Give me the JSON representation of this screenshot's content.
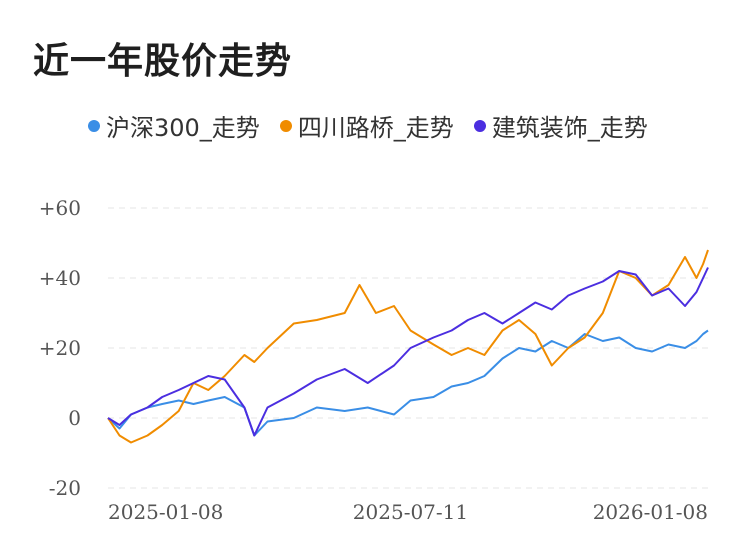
{
  "title": "近一年股价走势",
  "legend": [
    {
      "label": "沪深300_走势",
      "color": "#3a8ee6"
    },
    {
      "label": "四川路桥_走势",
      "color": "#f08c00"
    },
    {
      "label": "建筑装饰_走势",
      "color": "#4b2ee0"
    }
  ],
  "chart_data": {
    "type": "line",
    "ylim": [
      -20,
      60
    ],
    "yticks": [
      "+60",
      "+40",
      "+20",
      "0",
      "-20"
    ],
    "ytick_values": [
      60,
      40,
      20,
      0,
      -20
    ],
    "xticks": [
      "2025-01-08",
      "2025-07-11",
      "2026-01-08"
    ],
    "grid": true,
    "legend_placement": "top",
    "series": [
      {
        "name": "沪深300_走势",
        "color": "#3a8ee6",
        "x": [
          "2025-01-08",
          "2025-01-15",
          "2025-01-22",
          "2025-02-01",
          "2025-02-10",
          "2025-02-20",
          "2025-03-01",
          "2025-03-10",
          "2025-03-20",
          "2025-04-01",
          "2025-04-07",
          "2025-04-15",
          "2025-05-01",
          "2025-05-15",
          "2025-06-01",
          "2025-06-15",
          "2025-07-01",
          "2025-07-11",
          "2025-07-25",
          "2025-08-05",
          "2025-08-15",
          "2025-08-25",
          "2025-09-05",
          "2025-09-15",
          "2025-09-25",
          "2025-10-05",
          "2025-10-15",
          "2025-10-25",
          "2025-11-05",
          "2025-11-15",
          "2025-11-25",
          "2025-12-05",
          "2025-12-15",
          "2025-12-25",
          "2026-01-01",
          "2026-01-05",
          "2026-01-08"
        ],
        "values": [
          0,
          -3,
          1,
          3,
          4,
          5,
          4,
          5,
          6,
          3,
          -5,
          -1,
          0,
          3,
          2,
          3,
          1,
          5,
          6,
          9,
          10,
          12,
          17,
          20,
          19,
          22,
          20,
          24,
          22,
          23,
          20,
          19,
          21,
          20,
          22,
          24,
          25
        ]
      },
      {
        "name": "四川路桥_走势",
        "color": "#f08c00",
        "x": [
          "2025-01-08",
          "2025-01-15",
          "2025-01-22",
          "2025-02-01",
          "2025-02-10",
          "2025-02-20",
          "2025-03-01",
          "2025-03-10",
          "2025-03-20",
          "2025-04-01",
          "2025-04-07",
          "2025-04-15",
          "2025-05-01",
          "2025-05-15",
          "2025-06-01",
          "2025-06-10",
          "2025-06-20",
          "2025-07-01",
          "2025-07-11",
          "2025-07-25",
          "2025-08-05",
          "2025-08-15",
          "2025-08-25",
          "2025-09-05",
          "2025-09-15",
          "2025-09-25",
          "2025-10-05",
          "2025-10-15",
          "2025-10-25",
          "2025-11-05",
          "2025-11-15",
          "2025-11-25",
          "2025-12-05",
          "2025-12-15",
          "2025-12-25",
          "2026-01-01",
          "2026-01-05",
          "2026-01-08"
        ],
        "values": [
          0,
          -5,
          -7,
          -5,
          -2,
          2,
          10,
          8,
          12,
          18,
          16,
          20,
          27,
          28,
          30,
          38,
          30,
          32,
          25,
          21,
          18,
          20,
          18,
          25,
          28,
          24,
          15,
          20,
          23,
          30,
          42,
          40,
          35,
          38,
          46,
          40,
          44,
          48
        ]
      },
      {
        "name": "建筑装饰_走势",
        "color": "#4b2ee0",
        "x": [
          "2025-01-08",
          "2025-01-15",
          "2025-01-22",
          "2025-02-01",
          "2025-02-10",
          "2025-02-20",
          "2025-03-01",
          "2025-03-10",
          "2025-03-20",
          "2025-04-01",
          "2025-04-07",
          "2025-04-15",
          "2025-05-01",
          "2025-05-15",
          "2025-06-01",
          "2025-06-15",
          "2025-07-01",
          "2025-07-11",
          "2025-07-25",
          "2025-08-05",
          "2025-08-15",
          "2025-08-25",
          "2025-09-05",
          "2025-09-15",
          "2025-09-25",
          "2025-10-05",
          "2025-10-15",
          "2025-10-25",
          "2025-11-05",
          "2025-11-15",
          "2025-11-25",
          "2025-12-05",
          "2025-12-15",
          "2025-12-25",
          "2026-01-01",
          "2026-01-05",
          "2026-01-08"
        ],
        "values": [
          0,
          -2,
          1,
          3,
          6,
          8,
          10,
          12,
          11,
          3,
          -5,
          3,
          7,
          11,
          14,
          10,
          15,
          20,
          23,
          25,
          28,
          30,
          27,
          30,
          33,
          31,
          35,
          37,
          39,
          42,
          41,
          35,
          37,
          32,
          36,
          40,
          43
        ]
      }
    ]
  }
}
